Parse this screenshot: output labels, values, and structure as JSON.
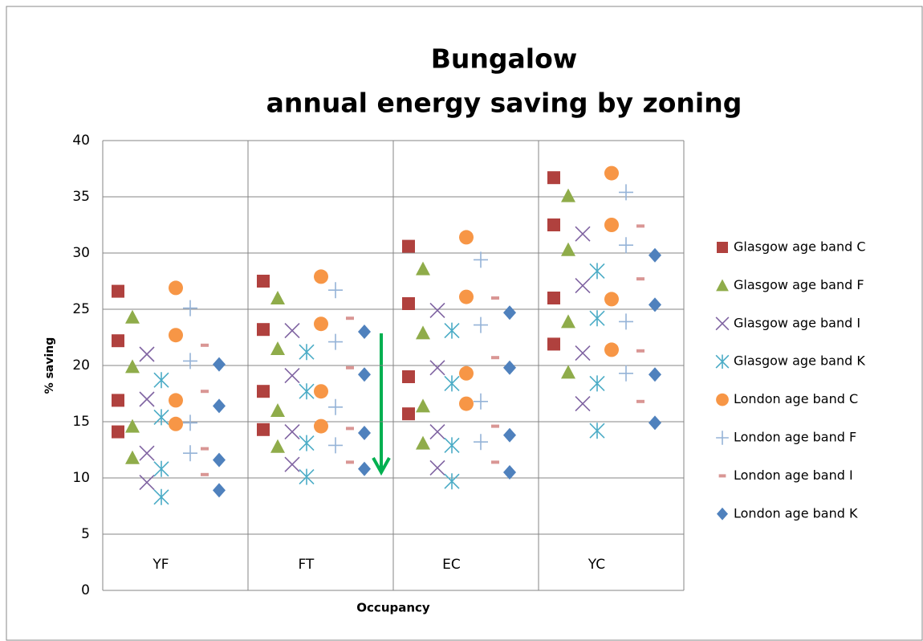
{
  "chart_data": {
    "type": "scatter",
    "title": "Bungalow",
    "subtitle": "annual energy saving by zoning",
    "y_label": "% saving",
    "x_label": "Occupancy",
    "categories": [
      "YF",
      "FT",
      "EC",
      "YC"
    ],
    "ylim": [
      0,
      40
    ],
    "yticks": [
      0,
      5,
      10,
      15,
      20,
      25,
      30,
      35,
      40
    ],
    "grid": true,
    "legend": "right",
    "series": [
      {
        "name": "Glasgow age band C",
        "color": "#b0413e",
        "marker": "square",
        "values": [
          [
            26.6,
            22.2,
            16.9,
            14.1
          ],
          [
            27.5,
            23.2,
            17.7,
            14.3
          ],
          [
            30.6,
            25.5,
            19.0,
            15.7
          ],
          [
            36.7,
            32.5,
            26.0,
            21.9
          ]
        ]
      },
      {
        "name": "Glasgow age band F",
        "color": "#8fac4a",
        "marker": "triangle",
        "values": [
          [
            24.3,
            19.9,
            14.6,
            11.8
          ],
          [
            26.0,
            21.5,
            16.0,
            12.8
          ],
          [
            28.6,
            22.9,
            16.4,
            13.1
          ],
          [
            35.1,
            30.3,
            23.9,
            19.4
          ]
        ]
      },
      {
        "name": "Glasgow age band I",
        "color": "#8064a2",
        "marker": "x",
        "values": [
          [
            21.0,
            17.0,
            12.2,
            9.6
          ],
          [
            23.1,
            19.1,
            14.1,
            11.2
          ],
          [
            24.9,
            19.8,
            14.1,
            10.9
          ],
          [
            31.7,
            27.1,
            21.1,
            16.6
          ]
        ]
      },
      {
        "name": "Glasgow age band K",
        "color": "#4bacc6",
        "marker": "asterisk",
        "values": [
          [
            18.7,
            15.4,
            10.8,
            8.3
          ],
          [
            21.2,
            17.7,
            13.1,
            10.1
          ],
          [
            23.1,
            18.4,
            12.9,
            9.7
          ],
          [
            28.4,
            24.2,
            18.4,
            14.2
          ]
        ]
      },
      {
        "name": "London age band C",
        "color": "#f79646",
        "marker": "circle",
        "values": [
          [
            26.9,
            22.7,
            16.9,
            14.8
          ],
          [
            27.9,
            23.7,
            17.7,
            14.6
          ],
          [
            31.4,
            26.1,
            19.3,
            16.6
          ],
          [
            37.1,
            32.5,
            25.9,
            21.4
          ]
        ]
      },
      {
        "name": "London age band F",
        "color": "#95b3d7",
        "marker": "plus",
        "values": [
          [
            25.1,
            20.4,
            14.9,
            12.2
          ],
          [
            26.7,
            22.1,
            16.3,
            12.9
          ],
          [
            29.4,
            23.6,
            16.8,
            13.2
          ],
          [
            35.4,
            30.7,
            23.9,
            19.3
          ]
        ]
      },
      {
        "name": "London age band I",
        "color": "#d99694",
        "marker": "dash",
        "values": [
          [
            21.8,
            17.7,
            12.6,
            10.3
          ],
          [
            24.2,
            19.8,
            14.4,
            11.4
          ],
          [
            26.0,
            20.7,
            14.6,
            11.4
          ],
          [
            32.4,
            27.7,
            21.3,
            16.8
          ]
        ]
      },
      {
        "name": "London age band K",
        "color": "#4f81bd",
        "marker": "diamond",
        "values": [
          [
            20.1,
            16.4,
            11.6,
            8.9
          ],
          [
            23.0,
            19.2,
            14.0,
            10.8
          ],
          [
            24.7,
            19.8,
            13.8,
            10.5
          ],
          [
            29.8,
            25.4,
            19.2,
            14.9
          ]
        ]
      }
    ]
  }
}
